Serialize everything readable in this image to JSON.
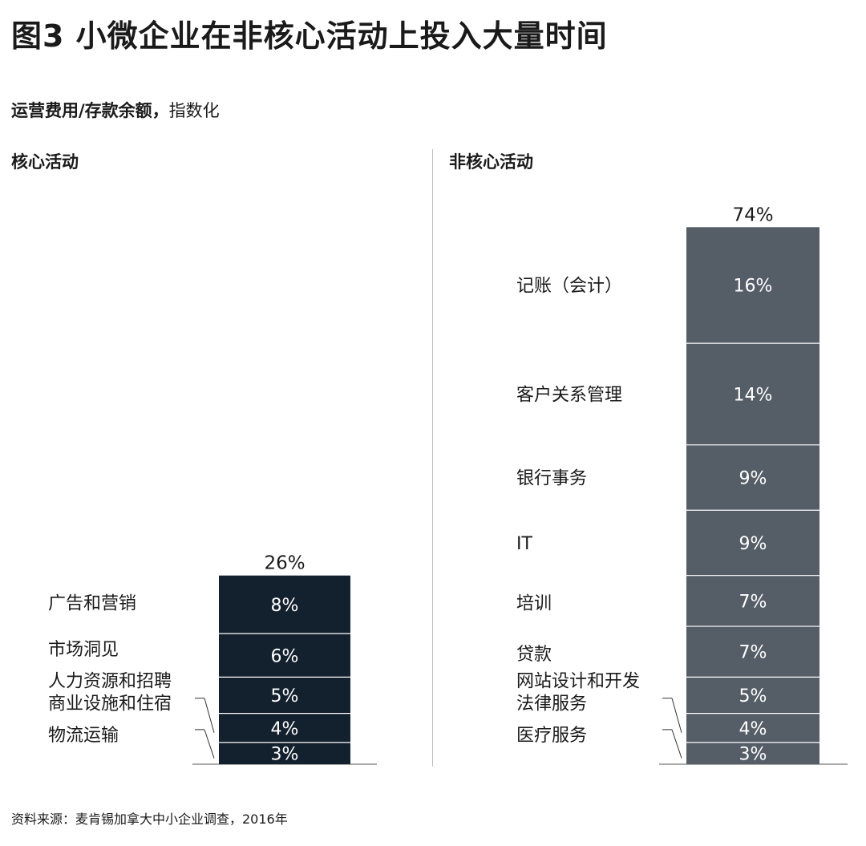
{
  "figure": {
    "title": "图3 小微企业在非核心活动上投入大量时间",
    "subtitle_bold": "运营费用/存款余额，",
    "subtitle_rest": "指数化",
    "source": "资料来源：麦肯锡加拿大中小企业调查，2016年"
  },
  "colors": {
    "core_bar": "#13202d",
    "noncore_bar": "#555e67",
    "segment_divider": "#ffffff",
    "text": "#1a1a1a"
  },
  "chart_data": [
    {
      "type": "bar",
      "stacked": true,
      "title": "核心活动",
      "total_label": "26%",
      "categories": [
        "广告和营销",
        "市场洞见",
        "人力资源和招聘",
        "商业设施和住宿",
        "物流运输"
      ],
      "values": [
        8,
        6,
        5,
        4,
        3
      ],
      "value_labels": [
        "8%",
        "6%",
        "5%",
        "4%",
        "3%"
      ],
      "ylim": [
        0,
        74
      ]
    },
    {
      "type": "bar",
      "stacked": true,
      "title": "非核心活动",
      "total_label": "74%",
      "categories": [
        "记账（会计）",
        "客户关系管理",
        "银行事务",
        "IT",
        "培训",
        "贷款",
        "网站设计和开发",
        "法律服务",
        "医疗服务"
      ],
      "values": [
        16,
        14,
        9,
        9,
        7,
        7,
        5,
        4,
        3
      ],
      "value_labels": [
        "16%",
        "14%",
        "9%",
        "9%",
        "7%",
        "7%",
        "5%",
        "4%",
        "3%"
      ],
      "ylim": [
        0,
        74
      ]
    }
  ]
}
